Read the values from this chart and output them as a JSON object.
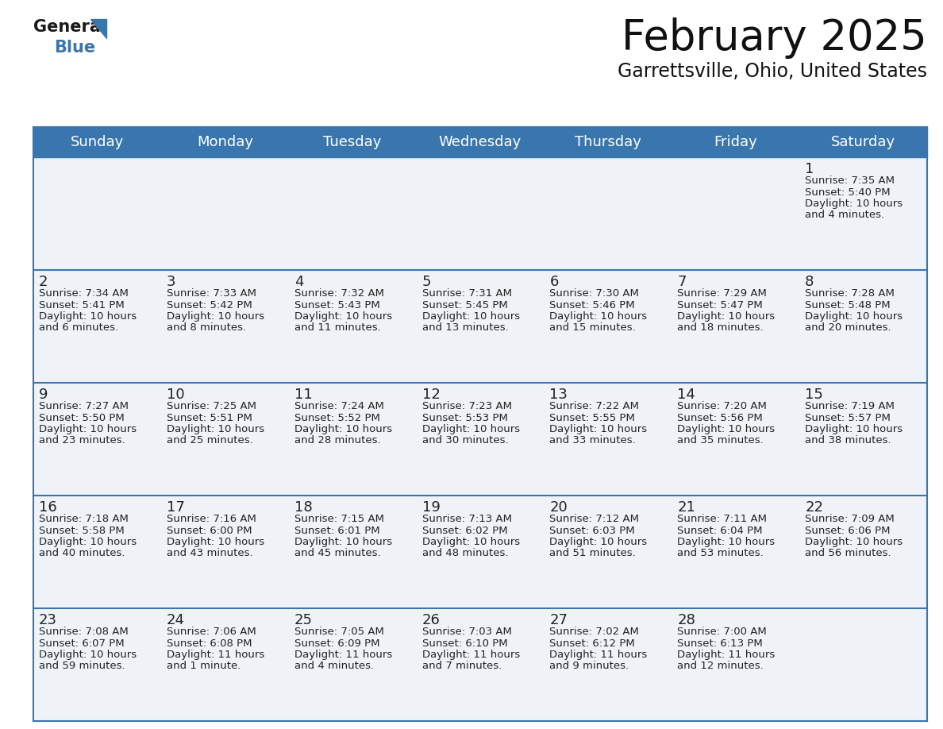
{
  "title": "February 2025",
  "subtitle": "Garrettsville, Ohio, United States",
  "header_color": "#3976ae",
  "header_text_color": "#ffffff",
  "cell_bg": "#eff3f8",
  "border_color": "#3976ae",
  "text_color": "#222222",
  "day_headers": [
    "Sunday",
    "Monday",
    "Tuesday",
    "Wednesday",
    "Thursday",
    "Friday",
    "Saturday"
  ],
  "days": [
    {
      "day": 1,
      "col": 6,
      "row": 0,
      "sunrise": "7:35 AM",
      "sunset": "5:40 PM",
      "daylight": "10 hours and 4 minutes."
    },
    {
      "day": 2,
      "col": 0,
      "row": 1,
      "sunrise": "7:34 AM",
      "sunset": "5:41 PM",
      "daylight": "10 hours and 6 minutes."
    },
    {
      "day": 3,
      "col": 1,
      "row": 1,
      "sunrise": "7:33 AM",
      "sunset": "5:42 PM",
      "daylight": "10 hours and 8 minutes."
    },
    {
      "day": 4,
      "col": 2,
      "row": 1,
      "sunrise": "7:32 AM",
      "sunset": "5:43 PM",
      "daylight": "10 hours and 11 minutes."
    },
    {
      "day": 5,
      "col": 3,
      "row": 1,
      "sunrise": "7:31 AM",
      "sunset": "5:45 PM",
      "daylight": "10 hours and 13 minutes."
    },
    {
      "day": 6,
      "col": 4,
      "row": 1,
      "sunrise": "7:30 AM",
      "sunset": "5:46 PM",
      "daylight": "10 hours and 15 minutes."
    },
    {
      "day": 7,
      "col": 5,
      "row": 1,
      "sunrise": "7:29 AM",
      "sunset": "5:47 PM",
      "daylight": "10 hours and 18 minutes."
    },
    {
      "day": 8,
      "col": 6,
      "row": 1,
      "sunrise": "7:28 AM",
      "sunset": "5:48 PM",
      "daylight": "10 hours and 20 minutes."
    },
    {
      "day": 9,
      "col": 0,
      "row": 2,
      "sunrise": "7:27 AM",
      "sunset": "5:50 PM",
      "daylight": "10 hours and 23 minutes."
    },
    {
      "day": 10,
      "col": 1,
      "row": 2,
      "sunrise": "7:25 AM",
      "sunset": "5:51 PM",
      "daylight": "10 hours and 25 minutes."
    },
    {
      "day": 11,
      "col": 2,
      "row": 2,
      "sunrise": "7:24 AM",
      "sunset": "5:52 PM",
      "daylight": "10 hours and 28 minutes."
    },
    {
      "day": 12,
      "col": 3,
      "row": 2,
      "sunrise": "7:23 AM",
      "sunset": "5:53 PM",
      "daylight": "10 hours and 30 minutes."
    },
    {
      "day": 13,
      "col": 4,
      "row": 2,
      "sunrise": "7:22 AM",
      "sunset": "5:55 PM",
      "daylight": "10 hours and 33 minutes."
    },
    {
      "day": 14,
      "col": 5,
      "row": 2,
      "sunrise": "7:20 AM",
      "sunset": "5:56 PM",
      "daylight": "10 hours and 35 minutes."
    },
    {
      "day": 15,
      "col": 6,
      "row": 2,
      "sunrise": "7:19 AM",
      "sunset": "5:57 PM",
      "daylight": "10 hours and 38 minutes."
    },
    {
      "day": 16,
      "col": 0,
      "row": 3,
      "sunrise": "7:18 AM",
      "sunset": "5:58 PM",
      "daylight": "10 hours and 40 minutes."
    },
    {
      "day": 17,
      "col": 1,
      "row": 3,
      "sunrise": "7:16 AM",
      "sunset": "6:00 PM",
      "daylight": "10 hours and 43 minutes."
    },
    {
      "day": 18,
      "col": 2,
      "row": 3,
      "sunrise": "7:15 AM",
      "sunset": "6:01 PM",
      "daylight": "10 hours and 45 minutes."
    },
    {
      "day": 19,
      "col": 3,
      "row": 3,
      "sunrise": "7:13 AM",
      "sunset": "6:02 PM",
      "daylight": "10 hours and 48 minutes."
    },
    {
      "day": 20,
      "col": 4,
      "row": 3,
      "sunrise": "7:12 AM",
      "sunset": "6:03 PM",
      "daylight": "10 hours and 51 minutes."
    },
    {
      "day": 21,
      "col": 5,
      "row": 3,
      "sunrise": "7:11 AM",
      "sunset": "6:04 PM",
      "daylight": "10 hours and 53 minutes."
    },
    {
      "day": 22,
      "col": 6,
      "row": 3,
      "sunrise": "7:09 AM",
      "sunset": "6:06 PM",
      "daylight": "10 hours and 56 minutes."
    },
    {
      "day": 23,
      "col": 0,
      "row": 4,
      "sunrise": "7:08 AM",
      "sunset": "6:07 PM",
      "daylight": "10 hours and 59 minutes."
    },
    {
      "day": 24,
      "col": 1,
      "row": 4,
      "sunrise": "7:06 AM",
      "sunset": "6:08 PM",
      "daylight": "11 hours and 1 minute."
    },
    {
      "day": 25,
      "col": 2,
      "row": 4,
      "sunrise": "7:05 AM",
      "sunset": "6:09 PM",
      "daylight": "11 hours and 4 minutes."
    },
    {
      "day": 26,
      "col": 3,
      "row": 4,
      "sunrise": "7:03 AM",
      "sunset": "6:10 PM",
      "daylight": "11 hours and 7 minutes."
    },
    {
      "day": 27,
      "col": 4,
      "row": 4,
      "sunrise": "7:02 AM",
      "sunset": "6:12 PM",
      "daylight": "11 hours and 9 minutes."
    },
    {
      "day": 28,
      "col": 5,
      "row": 4,
      "sunrise": "7:00 AM",
      "sunset": "6:13 PM",
      "daylight": "11 hours and 12 minutes."
    }
  ],
  "num_rows": 5,
  "num_cols": 7,
  "title_fontsize": 38,
  "subtitle_fontsize": 17,
  "header_fontsize": 13,
  "day_num_fontsize": 13,
  "cell_text_fontsize": 9.5,
  "logo_general_fontsize": 15,
  "logo_blue_fontsize": 15
}
